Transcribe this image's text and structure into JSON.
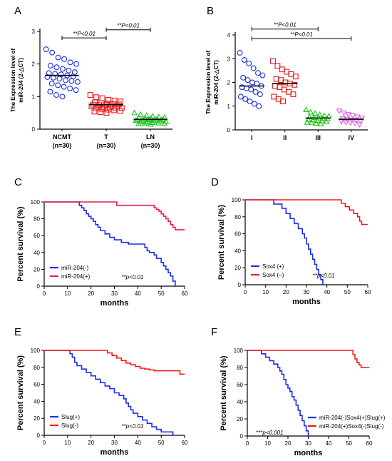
{
  "chart_data": [
    {
      "panel": "A",
      "type": "scatter",
      "ylabel": [
        "The Expression level of",
        "miR-204 (2-△CT)"
      ],
      "ylim": [
        0,
        3
      ],
      "yticks": [
        "0",
        "1",
        "2",
        "3"
      ],
      "categories": [
        "NCMT\n(n=30)",
        "T\n(n=30)",
        "LN\n(n=30)"
      ],
      "colors": [
        "#1a2ee6",
        "#e61a1a",
        "#22c41e"
      ],
      "markers": [
        "circle",
        "square",
        "triangle-up"
      ],
      "means": [
        1.65,
        0.75,
        0.3
      ],
      "values": [
        [
          2.45,
          2.35,
          2.2,
          2.15,
          2.05,
          2.0,
          1.95,
          1.9,
          1.85,
          1.8,
          1.75,
          1.72,
          1.7,
          1.68,
          1.65,
          1.62,
          1.6,
          1.58,
          1.55,
          1.5,
          1.48,
          1.45,
          1.4,
          1.35,
          1.3,
          1.25,
          1.2,
          1.15,
          1.05,
          1.0
        ],
        [
          1.05,
          0.98,
          0.95,
          0.9,
          0.88,
          0.85,
          0.82,
          0.8,
          0.78,
          0.77,
          0.76,
          0.75,
          0.74,
          0.73,
          0.72,
          0.71,
          0.7,
          0.69,
          0.68,
          0.67,
          0.66,
          0.65,
          0.64,
          0.62,
          0.6,
          0.58,
          0.56,
          0.54,
          0.52,
          0.5
        ],
        [
          0.5,
          0.45,
          0.42,
          0.4,
          0.38,
          0.36,
          0.35,
          0.34,
          0.33,
          0.32,
          0.31,
          0.3,
          0.3,
          0.29,
          0.28,
          0.28,
          0.27,
          0.26,
          0.25,
          0.25,
          0.24,
          0.23,
          0.22,
          0.21,
          0.2,
          0.19,
          0.18,
          0.17,
          0.16,
          0.15
        ]
      ],
      "annotations": [
        {
          "text": "**P<0.01",
          "from": 0,
          "to": 1,
          "level": 2.8
        },
        {
          "text": "**P<0.01",
          "from": 1,
          "to": 2,
          "level": 3.05
        }
      ]
    },
    {
      "panel": "B",
      "type": "scatter",
      "ylabel": [
        "The Expression level of",
        "miR-204 (2-△CT)"
      ],
      "ylim": [
        0,
        4
      ],
      "yticks": [
        "0",
        "1",
        "2",
        "3",
        "4"
      ],
      "categories": [
        "I",
        "II",
        "III",
        "IV"
      ],
      "colors": [
        "#1a2ee6",
        "#e61a1a",
        "#22c41e",
        "#e060e6"
      ],
      "markers": [
        "circle",
        "square",
        "triangle-up",
        "triangle-down"
      ],
      "means": [
        1.85,
        1.95,
        0.5,
        0.45
      ],
      "values": [
        [
          3.25,
          2.95,
          2.8,
          2.6,
          2.4,
          2.3,
          2.2,
          2.1,
          2.0,
          1.95,
          1.85,
          1.8,
          1.75,
          1.7,
          1.6,
          1.5,
          1.4,
          1.3,
          1.2,
          1.1,
          1.0
        ],
        [
          2.9,
          2.7,
          2.55,
          2.45,
          2.35,
          2.25,
          2.15,
          2.1,
          2.0,
          1.95,
          1.9,
          1.85,
          1.8,
          1.7,
          1.6,
          1.5,
          1.4,
          1.3,
          1.2
        ],
        [
          0.85,
          0.75,
          0.7,
          0.65,
          0.6,
          0.58,
          0.55,
          0.52,
          0.5,
          0.48,
          0.46,
          0.44,
          0.42,
          0.4,
          0.38,
          0.35,
          0.32,
          0.3,
          0.28,
          0.25
        ],
        [
          0.8,
          0.72,
          0.65,
          0.6,
          0.55,
          0.5,
          0.48,
          0.45,
          0.42,
          0.4,
          0.38,
          0.35,
          0.32,
          0.3,
          0.28,
          0.22
        ]
      ],
      "annotations": [
        {
          "text": "**P<0.01",
          "from": 0,
          "to": 2,
          "level": 4.25
        },
        {
          "text": "**P<0.01",
          "from": 0,
          "to": 3,
          "level": 3.85
        }
      ]
    },
    {
      "panel": "C",
      "type": "line",
      "xlabel": "months",
      "ylabel": "Percent survival (%)",
      "xlim": [
        0,
        60
      ],
      "ylim": [
        0,
        100
      ],
      "xticks": [
        0,
        10,
        20,
        30,
        40,
        50,
        60
      ],
      "yticks": [
        0,
        20,
        40,
        60,
        80,
        100
      ],
      "note": "**p<0.01",
      "series": [
        {
          "name": "miR-204(-)",
          "color": "#1a2ee6",
          "x": [
            0,
            14,
            15,
            16,
            17,
            18,
            19,
            20,
            21,
            22,
            23,
            24,
            26,
            28,
            30,
            33,
            36,
            40,
            43,
            44,
            45,
            47,
            48,
            50,
            51,
            52,
            53,
            54,
            55,
            56
          ],
          "y": [
            100,
            100,
            96,
            93,
            90,
            86,
            83,
            80,
            77,
            73,
            70,
            66,
            62,
            58,
            55,
            52,
            50,
            50,
            46,
            42,
            40,
            37,
            33,
            28,
            24,
            20,
            16,
            12,
            6,
            0
          ]
        },
        {
          "name": "miR-204(+)",
          "color": "#f01850",
          "x": [
            0,
            30,
            31,
            45,
            47,
            48,
            49,
            50,
            51,
            52,
            53,
            54,
            55,
            56,
            60
          ],
          "y": [
            100,
            100,
            96,
            96,
            93,
            91,
            89,
            86,
            83,
            80,
            77,
            73,
            70,
            67,
            67
          ]
        }
      ]
    },
    {
      "panel": "D",
      "type": "line",
      "xlabel": "months",
      "ylabel": "Percent survival (%)",
      "xlim": [
        0,
        60
      ],
      "ylim": [
        0,
        100
      ],
      "xticks": [
        0,
        10,
        20,
        30,
        40,
        50,
        60
      ],
      "yticks": [
        0,
        20,
        40,
        60,
        80,
        100
      ],
      "note": "**p<0.01",
      "series": [
        {
          "name": "Sox4 (+)",
          "color": "#1a2ee6",
          "x": [
            0,
            12,
            14,
            18,
            20,
            22,
            24,
            26,
            28,
            29,
            30,
            31,
            32,
            33,
            34,
            35,
            36,
            37,
            38
          ],
          "y": [
            100,
            100,
            95,
            90,
            84,
            78,
            72,
            66,
            60,
            55,
            48,
            42,
            36,
            30,
            24,
            18,
            12,
            6,
            0
          ]
        },
        {
          "name": "Sox4 (–)",
          "color": "#f01818",
          "x": [
            0,
            45,
            47,
            49,
            51,
            53,
            55,
            56,
            57,
            60
          ],
          "y": [
            100,
            100,
            96,
            92,
            88,
            84,
            80,
            75,
            71,
            71
          ]
        }
      ]
    },
    {
      "panel": "E",
      "type": "line",
      "xlabel": "months",
      "ylabel": "Percent survival (%)",
      "xlim": [
        0,
        60
      ],
      "ylim": [
        0,
        100
      ],
      "xticks": [
        0,
        10,
        20,
        30,
        40,
        50,
        60
      ],
      "yticks": [
        0,
        20,
        40,
        60,
        80,
        100
      ],
      "note": "**p<0.01",
      "series": [
        {
          "name": "Slug(+)",
          "color": "#1a2ee6",
          "x": [
            0,
            10,
            11,
            12,
            13,
            14,
            16,
            18,
            20,
            22,
            24,
            26,
            28,
            30,
            32,
            34,
            35,
            36,
            37,
            38,
            40,
            42,
            44,
            46,
            48,
            50,
            54,
            55
          ],
          "y": [
            100,
            100,
            96,
            92,
            86,
            82,
            78,
            74,
            70,
            66,
            62,
            58,
            55,
            50,
            47,
            43,
            38,
            34,
            30,
            26,
            22,
            18,
            14,
            10,
            7,
            4,
            4,
            0
          ]
        },
        {
          "name": "Slug(-)",
          "color": "#f01818",
          "x": [
            0,
            25,
            27,
            29,
            31,
            33,
            35,
            37,
            39,
            41,
            43,
            45,
            47,
            57,
            58,
            60
          ],
          "y": [
            100,
            100,
            97,
            94,
            91,
            88,
            85,
            83,
            81,
            79,
            78,
            77,
            76,
            76,
            72,
            72
          ]
        }
      ]
    },
    {
      "panel": "F",
      "type": "line",
      "xlabel": "months",
      "ylabel": "Percent survival (%)",
      "xlim": [
        0,
        60
      ],
      "ylim": [
        0,
        100
      ],
      "xticks": [
        0,
        10,
        20,
        30,
        40,
        50,
        60
      ],
      "yticks": [
        0,
        20,
        40,
        60,
        80,
        100
      ],
      "note": "***p<0.001",
      "series": [
        {
          "name": "miR-204(-)Sox4(+)Slug(+)",
          "color": "#1a2ee6",
          "x": [
            0,
            5,
            7,
            9,
            11,
            13,
            15,
            16,
            17,
            18,
            19,
            20,
            21,
            22,
            23,
            24,
            25,
            26,
            27,
            28,
            29,
            30
          ],
          "y": [
            100,
            100,
            96,
            92,
            88,
            84,
            80,
            76,
            72,
            66,
            60,
            56,
            52,
            46,
            42,
            36,
            30,
            24,
            18,
            12,
            6,
            0
          ]
        },
        {
          "name": "miR-204(+)Sox4(-)Slug(-)",
          "color": "#f01818",
          "x": [
            0,
            50,
            52,
            53,
            54,
            55,
            56,
            60
          ],
          "y": [
            100,
            100,
            95,
            90,
            86,
            83,
            80,
            80
          ]
        }
      ]
    }
  ]
}
